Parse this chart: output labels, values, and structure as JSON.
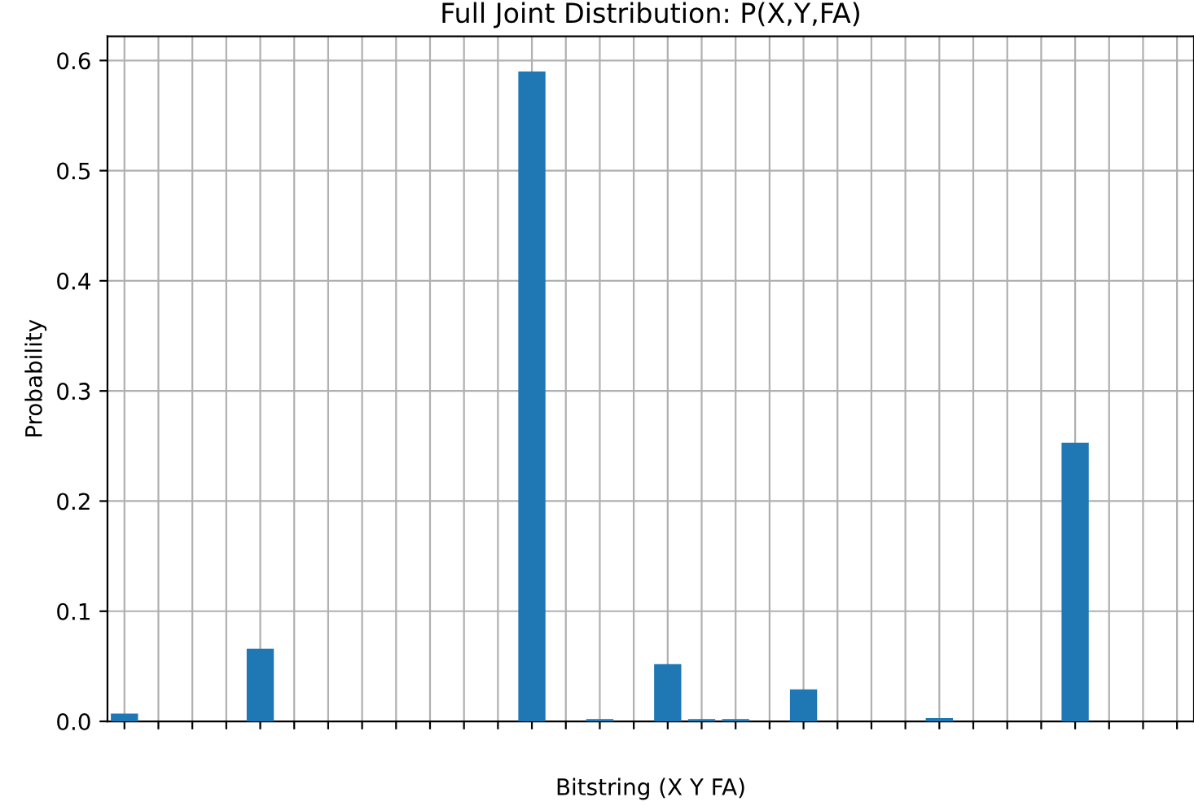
{
  "chart_data": {
    "type": "bar",
    "title": "Full Joint Distribution: P(X,Y,FA)",
    "xlabel": "Bitstring (X Y FA)",
    "ylabel": "Probability",
    "categories": [
      null,
      null,
      null,
      null,
      null,
      null,
      null,
      null,
      null,
      null,
      null,
      null,
      null,
      null,
      null,
      null,
      null,
      null,
      null,
      null,
      null,
      null,
      null,
      null,
      null,
      null,
      null,
      null,
      null,
      null,
      null,
      null
    ],
    "values": [
      0.007,
      0,
      0,
      0,
      0.066,
      0,
      0,
      0,
      0,
      0,
      0,
      0,
      0.59,
      0,
      0.002,
      0,
      0.052,
      0.002,
      0.002,
      0,
      0.029,
      0,
      0,
      0,
      0.003,
      0,
      0,
      0,
      0.253,
      0,
      0,
      0
    ],
    "color": "#1f77b4",
    "ylim": [
      0,
      0.622
    ],
    "yticks": [
      {
        "value": 0,
        "label": "0.0"
      },
      0.1,
      0.2,
      0.3,
      0.4,
      0.5,
      0.6
    ],
    "grid": true,
    "tick_labels": "y"
  }
}
